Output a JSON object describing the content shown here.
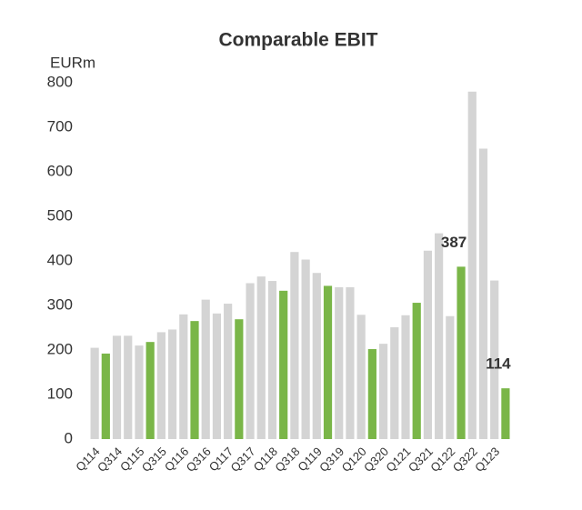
{
  "chart_data": {
    "type": "bar",
    "title": "Comparable EBIT",
    "y_label": "EURm",
    "categories": [
      "Q114",
      null,
      "Q314",
      null,
      "Q115",
      null,
      "Q315",
      null,
      "Q116",
      null,
      "Q316",
      null,
      "Q117",
      null,
      "Q317",
      null,
      "Q118",
      null,
      "Q318",
      null,
      "Q119",
      null,
      "Q319",
      null,
      "Q120",
      null,
      "Q320",
      null,
      "Q121",
      null,
      "Q321",
      null,
      "Q122",
      null,
      "Q322",
      null,
      "Q123",
      null
    ],
    "values": [
      205,
      192,
      232,
      232,
      210,
      218,
      240,
      246,
      280,
      265,
      313,
      282,
      304,
      269,
      350,
      365,
      355,
      333,
      420,
      403,
      373,
      344,
      341,
      341,
      279,
      202,
      214,
      251,
      278,
      306,
      423,
      462,
      276,
      387,
      780,
      652,
      356,
      114
    ],
    "value_labels": [
      null,
      null,
      null,
      null,
      null,
      null,
      null,
      null,
      null,
      null,
      null,
      null,
      null,
      null,
      null,
      null,
      null,
      null,
      null,
      null,
      null,
      null,
      null,
      null,
      null,
      null,
      null,
      null,
      null,
      null,
      null,
      null,
      null,
      "387",
      null,
      null,
      null,
      "114"
    ],
    "colors": [
      "#d4d4d4",
      "#7ab648",
      "#d4d4d4",
      "#d4d4d4",
      "#d4d4d4",
      "#7ab648",
      "#d4d4d4",
      "#d4d4d4",
      "#d4d4d4",
      "#7ab648",
      "#d4d4d4",
      "#d4d4d4",
      "#d4d4d4",
      "#7ab648",
      "#d4d4d4",
      "#d4d4d4",
      "#d4d4d4",
      "#7ab648",
      "#d4d4d4",
      "#d4d4d4",
      "#d4d4d4",
      "#7ab648",
      "#d4d4d4",
      "#d4d4d4",
      "#d4d4d4",
      "#7ab648",
      "#d4d4d4",
      "#d4d4d4",
      "#d4d4d4",
      "#7ab648",
      "#d4d4d4",
      "#d4d4d4",
      "#d4d4d4",
      "#7ab648",
      "#d4d4d4",
      "#d4d4d4",
      "#d4d4d4",
      "#7ab648"
    ],
    "ylim": [
      0,
      800
    ],
    "yticks": [
      0,
      100,
      200,
      300,
      400,
      500,
      600,
      700,
      800
    ],
    "grid": false
  }
}
